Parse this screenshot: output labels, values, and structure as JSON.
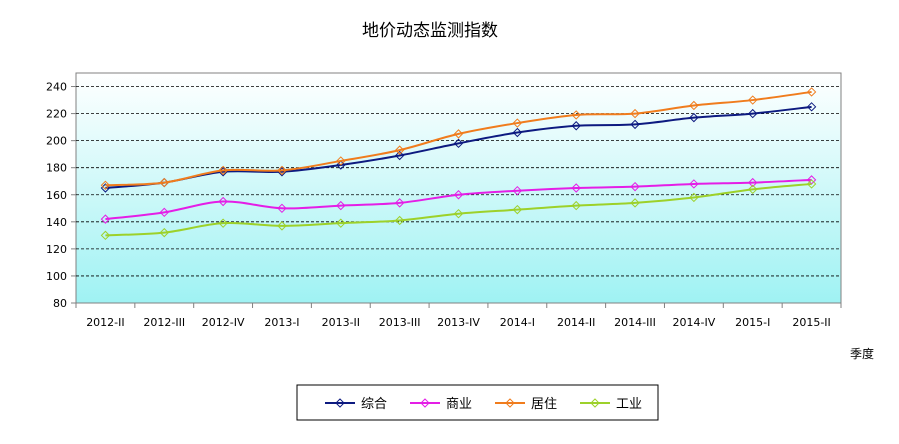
{
  "chart_data": {
    "type": "line",
    "title": "地价动态监测指数",
    "xlabel": "季度",
    "ylabel": "",
    "categories": [
      "2012-II",
      "2012-III",
      "2012-IV",
      "2013-I",
      "2013-II",
      "2013-III",
      "2013-IV",
      "2014-I",
      "2014-II",
      "2014-III",
      "2014-IV",
      "2015-I",
      "2015-II"
    ],
    "ylim": [
      80,
      250
    ],
    "yticks": [
      80,
      100,
      120,
      140,
      160,
      180,
      200,
      220,
      240
    ],
    "grid": true,
    "legend": "bottom",
    "series": [
      {
        "name": "综合",
        "color": "#0d1a80",
        "values": [
          165,
          169,
          177,
          177,
          182,
          189,
          198,
          206,
          211,
          212,
          217,
          220,
          225
        ]
      },
      {
        "name": "商业",
        "color": "#e41ee6",
        "values": [
          142,
          147,
          155,
          150,
          152,
          154,
          160,
          163,
          165,
          166,
          168,
          169,
          171
        ]
      },
      {
        "name": "居住",
        "color": "#f07c1d",
        "values": [
          167,
          169,
          178,
          178,
          185,
          193,
          205,
          213,
          219,
          220,
          226,
          230,
          236
        ]
      },
      {
        "name": "工业",
        "color": "#9dd12a",
        "values": [
          130,
          132,
          139,
          137,
          139,
          141,
          146,
          149,
          152,
          154,
          158,
          164,
          168
        ]
      }
    ]
  }
}
